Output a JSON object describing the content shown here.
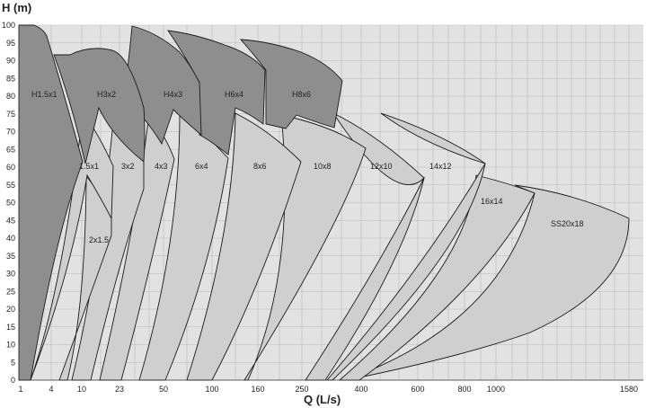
{
  "chart_data": {
    "type": "area",
    "title": "",
    "ylabel": "H (m)",
    "xlabel": "Q (L/s)",
    "ylim": [
      0,
      100
    ],
    "y_ticks": [
      0,
      5,
      10,
      15,
      20,
      25,
      30,
      35,
      40,
      45,
      50,
      55,
      60,
      65,
      70,
      75,
      80,
      85,
      90,
      95,
      100
    ],
    "x_ticks": [
      "1",
      "4",
      "10",
      "23",
      "50",
      "100",
      "160",
      "250",
      "400",
      "600",
      "800",
      "1000",
      "1580"
    ],
    "x_scale": "log",
    "grid": true,
    "background_color": "#e2e2e2",
    "dark_region_color": "#8e8e8e",
    "light_region_color": "#cfcfcf",
    "regions": [
      {
        "name": "H1.5x1",
        "shade": "dark"
      },
      {
        "name": "H3x2",
        "shade": "dark"
      },
      {
        "name": "H4x3",
        "shade": "dark"
      },
      {
        "name": "H6x4",
        "shade": "dark"
      },
      {
        "name": "H8x6",
        "shade": "dark"
      },
      {
        "name": "1.5x1",
        "shade": "light"
      },
      {
        "name": "2x1.5",
        "shade": "light"
      },
      {
        "name": "3x2",
        "shade": "light"
      },
      {
        "name": "4x3",
        "shade": "light"
      },
      {
        "name": "6x4",
        "shade": "light"
      },
      {
        "name": "8x6",
        "shade": "light"
      },
      {
        "name": "10x8",
        "shade": "light"
      },
      {
        "name": "12x10",
        "shade": "light"
      },
      {
        "name": "14x12",
        "shade": "light"
      },
      {
        "name": "16x14",
        "shade": "light"
      },
      {
        "name": "SS20x18",
        "shade": "light"
      }
    ]
  }
}
